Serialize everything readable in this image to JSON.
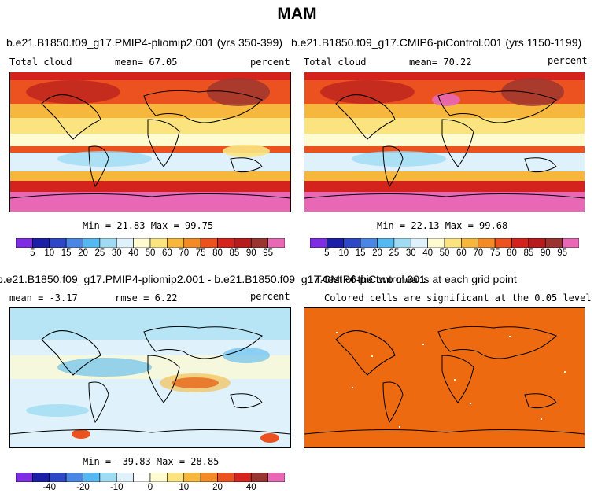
{
  "page_title": "MAM",
  "panels": [
    {
      "title": "b.e21.B1850.f09_g17.PMIP4-pliomip2.001 (yrs 350-399)",
      "left_label": "Total cloud",
      "center_label": "mean=  67.05",
      "right_label": "percent",
      "minmax": "Min =  21.83 Max =  99.75"
    },
    {
      "title": "b.e21.B1850.f09_g17.CMIP6-piControl.001 (yrs 1150-1199)",
      "left_label": "Total cloud",
      "center_label": "mean=  70.22",
      "right_label": "percent",
      "minmax": "Min =  22.13 Max =  99.68"
    },
    {
      "title": "b.e21.B1850.f09_g17.PMIP4-pliomip2.001 - b.e21.B1850.f09_g17.CMIP6-piControl.001",
      "left_label": "mean =  -3.17",
      "center_label": "rmse =   6.22",
      "right_label": "percent",
      "minmax": "Min = -39.83 Max =  28.85"
    },
    {
      "title": "T-test of the two means at each grid point",
      "center_label": "Colored cells are significant at the 0.05 level"
    }
  ],
  "colorbars": {
    "absolute": {
      "colors": [
        "#7e2ee2",
        "#1a1fa6",
        "#2e47c4",
        "#4a87e5",
        "#55b8f0",
        "#9fdcf4",
        "#dff2fb",
        "#fffbd0",
        "#fbe47f",
        "#f7b73c",
        "#f38a26",
        "#ec5220",
        "#d4221d",
        "#b71c1c",
        "#9a3430",
        "#e868b6"
      ],
      "labels": [
        "5",
        "10",
        "15",
        "20",
        "25",
        "30",
        "40",
        "50",
        "60",
        "70",
        "75",
        "80",
        "85",
        "90",
        "95"
      ]
    },
    "difference": {
      "colors": [
        "#7e2ee2",
        "#1a1fa6",
        "#2e47c4",
        "#4a87e5",
        "#55b8f0",
        "#9fdcf4",
        "#dff2fb",
        "#ffffff",
        "#fffbd0",
        "#fbe47f",
        "#f7b73c",
        "#f38a26",
        "#ec5220",
        "#d4221d",
        "#9a3430",
        "#e868b6"
      ],
      "labels": [
        "-40",
        "-20",
        "-10",
        "0",
        "10",
        "20",
        "40"
      ]
    }
  },
  "ttest_fill_color": "#ee6a10"
}
